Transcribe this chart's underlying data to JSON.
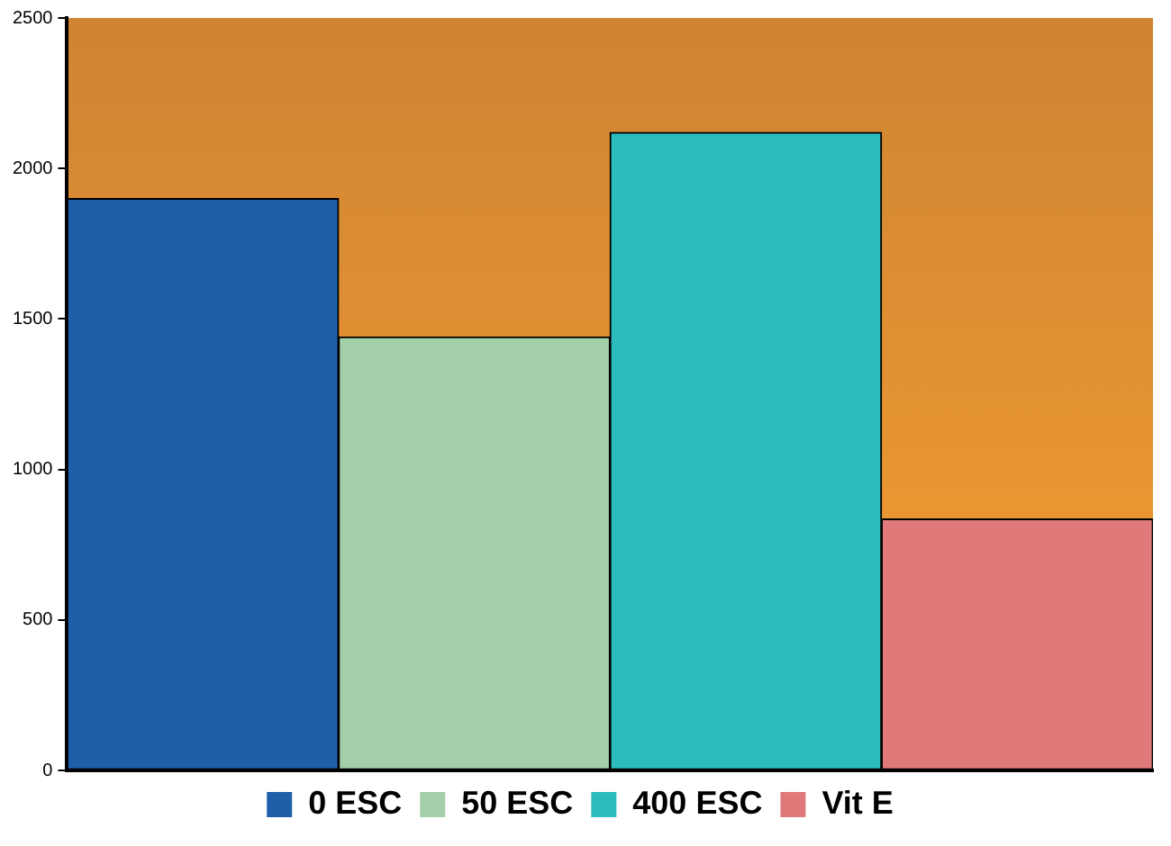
{
  "chart_data": {
    "type": "bar",
    "categories": [
      null,
      null,
      null,
      null
    ],
    "series": [
      {
        "name": "0 ESC",
        "color": "#1f5fa8",
        "values": [
          1900,
          null,
          null,
          null
        ]
      },
      {
        "name": "50 ESC",
        "color": "#a3cfa8",
        "values": [
          null,
          1440,
          null,
          null
        ]
      },
      {
        "name": "400 ESC",
        "color": "#2cbcbc",
        "values": [
          null,
          null,
          2120,
          null
        ]
      },
      {
        "name": "Vit E",
        "color": "#e07a7a",
        "values": [
          null,
          null,
          null,
          835
        ]
      }
    ],
    "ylim": [
      0,
      2500
    ],
    "yticks": [
      0,
      500,
      1000,
      1500,
      2000,
      2500
    ],
    "grid": false,
    "legend": "bottom"
  }
}
